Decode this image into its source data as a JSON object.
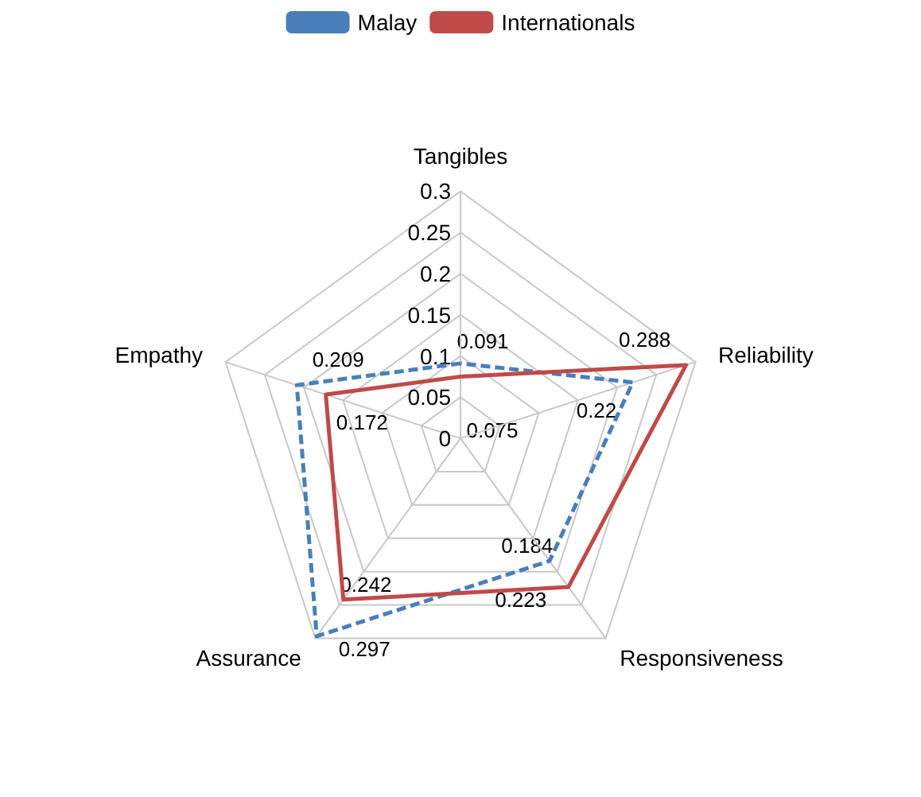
{
  "chart_data": {
    "type": "radar",
    "categories": [
      "Tangibles",
      "Reliability",
      "Responsiveness",
      "Assurance",
      "Empathy"
    ],
    "series": [
      {
        "name": "Malay",
        "color": "#4a7ebb",
        "line_style": "dashed",
        "values": [
          0.091,
          0.22,
          0.184,
          0.297,
          0.209
        ]
      },
      {
        "name": "Internationals",
        "color": "#be4b48",
        "line_style": "solid",
        "values": [
          0.075,
          0.288,
          0.223,
          0.242,
          0.172
        ]
      }
    ],
    "ylim": [
      0,
      0.3
    ],
    "yticks": [
      0,
      0.05,
      0.1,
      0.15,
      0.2,
      0.25,
      0.3
    ],
    "data_labels": true,
    "marker": "none",
    "legend": "top",
    "grid": true
  }
}
